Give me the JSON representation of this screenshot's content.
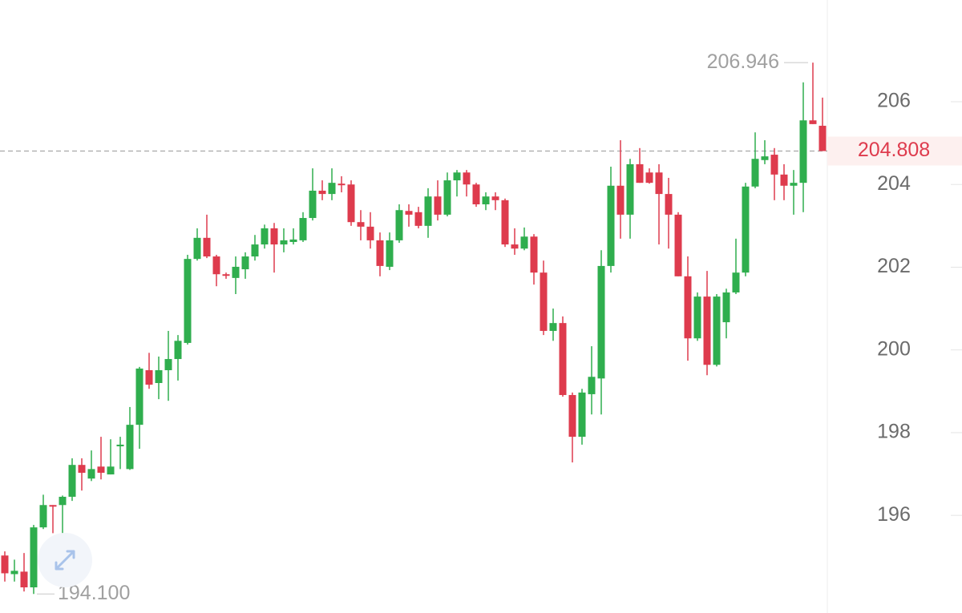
{
  "chart_data": {
    "type": "candlestick",
    "up_color": "#2fae4e",
    "down_color": "#de3b4d",
    "ylim": [
      193.64,
      208.46
    ],
    "yticks": [
      196,
      198,
      200,
      202,
      204,
      206
    ],
    "max_label": 206.946,
    "min_label": {
      "value": 194.1,
      "label": "194.100"
    },
    "last_price": 204.808,
    "open": [
      195.03,
      194.58,
      194.64,
      194.26,
      195.71,
      196.25,
      196.25,
      196.45,
      197.22,
      196.89,
      197.18,
      196.99,
      197.67,
      197.12,
      198.19,
      199.51,
      199.2,
      199.51,
      199.78,
      200.17,
      202.2,
      202.71,
      202.26,
      201.83,
      201.74,
      201.95,
      202.26,
      202.55,
      202.94,
      202.55,
      202.61,
      202.65,
      203.19,
      203.85,
      203.77,
      204.02,
      204.0,
      203.09,
      202.98,
      202.65,
      202.01,
      202.65,
      203.36,
      203.33,
      203.0,
      203.71,
      203.27,
      204.1,
      204.29,
      204.0,
      203.52,
      203.71,
      203.62,
      202.55,
      202.45,
      202.74,
      201.87,
      200.46,
      200.65,
      198.91,
      197.9,
      198.93,
      199.31,
      202.03,
      203.97,
      203.27,
      204.49,
      204.29,
      204.29,
      203.77,
      203.27,
      201.78,
      200.28,
      201.29,
      199.64,
      200.67,
      201.39,
      201.87,
      203.95,
      204.59,
      204.72,
      204.24,
      203.97,
      204.04,
      205.55,
      205.42
    ],
    "high": [
      195.13,
      194.93,
      195.09,
      195.77,
      196.5,
      196.25,
      196.48,
      197.38,
      197.38,
      197.57,
      197.9,
      197.84,
      197.9,
      198.62,
      199.59,
      199.93,
      199.84,
      200.46,
      200.36,
      202.3,
      202.94,
      203.27,
      202.3,
      201.87,
      202.26,
      202.36,
      202.78,
      203.03,
      203.07,
      202.94,
      202.94,
      203.33,
      204.39,
      204.1,
      204.39,
      204.2,
      204.1,
      203.38,
      203.33,
      202.84,
      202.84,
      203.52,
      203.52,
      203.46,
      203.91,
      204.1,
      204.29,
      204.35,
      204.35,
      204.04,
      203.81,
      203.81,
      203.66,
      202.94,
      202.96,
      202.8,
      202.16,
      201.0,
      200.81,
      198.97,
      199.06,
      200.09,
      202.41,
      204.43,
      205.07,
      204.62,
      204.88,
      204.39,
      204.49,
      204.16,
      203.33,
      202.26,
      201.39,
      201.91,
      201.35,
      201.48,
      202.69,
      204.04,
      205.26,
      205.07,
      204.88,
      204.49,
      204.35,
      206.47,
      206.946,
      206.1
    ],
    "low": [
      194.4,
      194.4,
      194.16,
      194.1,
      195.67,
      195.57,
      195.48,
      196.35,
      196.6,
      196.83,
      196.87,
      196.99,
      197.12,
      197.1,
      197.61,
      199.06,
      198.81,
      198.77,
      199.26,
      200.13,
      202.16,
      202.22,
      201.54,
      201.72,
      201.35,
      201.72,
      202.16,
      202.45,
      201.87,
      202.36,
      202.55,
      202.61,
      203.13,
      203.62,
      203.62,
      203.81,
      203.0,
      202.65,
      202.45,
      201.78,
      201.93,
      202.59,
      202.98,
      202.94,
      202.71,
      203.13,
      203.23,
      203.71,
      203.71,
      203.46,
      203.38,
      203.38,
      202.49,
      202.3,
      202.41,
      201.58,
      200.36,
      200.22,
      198.87,
      197.28,
      197.71,
      198.44,
      198.44,
      201.87,
      202.69,
      202.69,
      204.04,
      204.02,
      202.55,
      202.45,
      201.78,
      199.74,
      200.22,
      199.39,
      199.6,
      200.28,
      201.35,
      201.78,
      203.91,
      204.49,
      203.62,
      203.62,
      203.27,
      203.33,
      205.46,
      204.84
    ],
    "close": [
      194.6,
      194.66,
      194.26,
      195.71,
      196.25,
      196.23,
      196.45,
      197.22,
      197.03,
      197.12,
      197.03,
      197.18,
      197.71,
      198.19,
      199.55,
      199.16,
      199.51,
      199.78,
      200.22,
      202.2,
      202.71,
      202.26,
      201.83,
      201.8,
      202.01,
      202.26,
      202.55,
      202.94,
      202.55,
      202.65,
      202.67,
      203.19,
      203.85,
      203.77,
      204.04,
      204.0,
      203.09,
      202.98,
      202.65,
      202.03,
      202.65,
      203.38,
      203.27,
      203.0,
      203.71,
      203.27,
      204.1,
      204.29,
      204.0,
      203.52,
      203.71,
      203.62,
      202.55,
      202.45,
      202.74,
      201.87,
      200.46,
      200.65,
      198.91,
      197.9,
      198.97,
      199.35,
      202.03,
      203.97,
      203.27,
      204.49,
      204.04,
      204.04,
      203.77,
      203.27,
      201.78,
      200.28,
      201.29,
      199.64,
      201.29,
      201.39,
      201.87,
      203.95,
      204.62,
      204.68,
      204.24,
      203.97,
      204.04,
      205.55,
      205.46,
      204.808
    ]
  }
}
